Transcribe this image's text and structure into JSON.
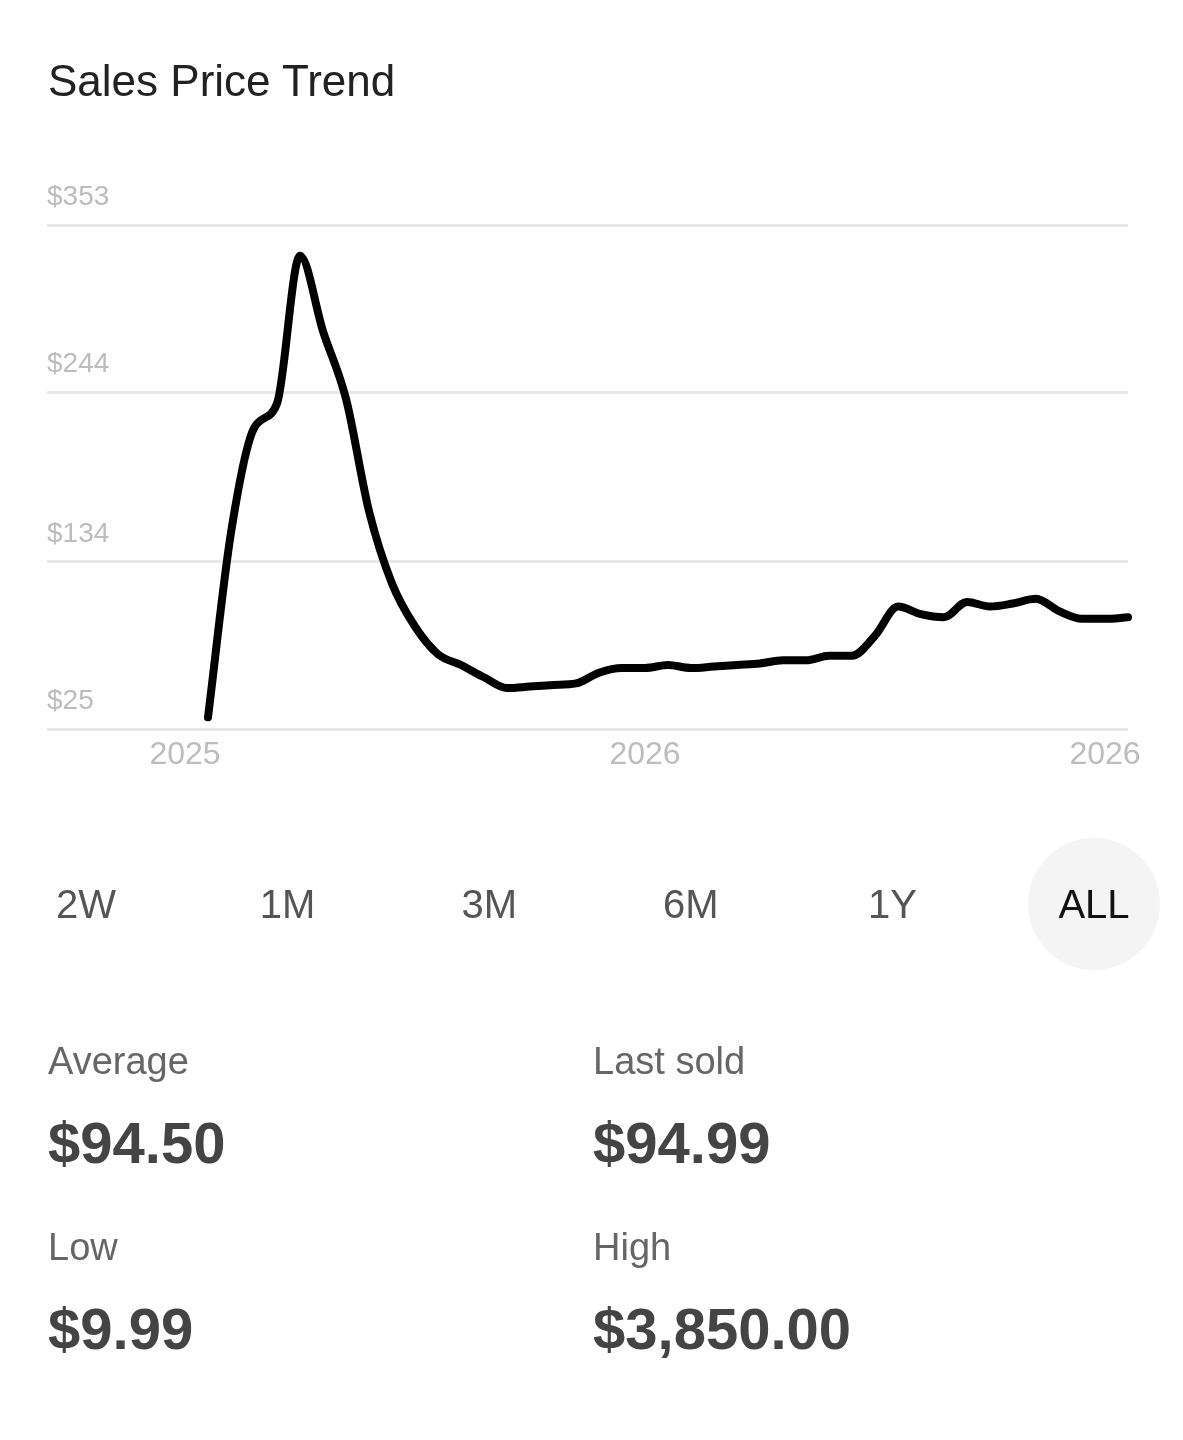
{
  "chart_data": {
    "type": "line",
    "title": "Sales Price Trend",
    "categories": [
      null,
      null,
      null,
      null,
      null,
      null,
      "2025",
      null,
      null,
      null,
      null,
      null,
      null,
      null,
      null,
      null,
      null,
      null,
      null,
      null,
      null,
      null,
      null,
      null,
      null,
      null,
      "2026",
      null,
      null,
      null,
      null,
      null,
      null,
      null,
      null,
      null,
      null,
      null,
      null,
      null,
      null,
      null,
      null,
      null,
      null,
      null,
      "2026",
      null
    ],
    "ylim": [
      25,
      353
    ],
    "yticks": [
      {
        "value": 25,
        "label": "$25"
      },
      {
        "value": 134,
        "label": "$134"
      },
      {
        "value": 244,
        "label": "$244"
      },
      {
        "value": 353,
        "label": "$353"
      }
    ],
    "grid": "y",
    "marker": "none",
    "line_style": "solid",
    "series": [
      {
        "color": "#000000",
        "values": [
          null,
          null,
          null,
          null,
          null,
          null,
          null,
          33,
          153,
          221,
          237,
          333,
          284,
          240,
          167,
          120,
          92,
          74,
          67,
          59,
          52,
          53,
          54,
          55,
          62,
          65,
          65,
          67,
          65,
          66,
          67,
          68,
          70,
          70,
          73,
          73,
          86,
          105,
          100,
          98,
          108,
          105,
          107,
          110,
          102,
          97,
          97,
          98
        ]
      }
    ],
    "annotations": [
      "2W",
      "1M",
      "3M",
      "6M",
      "1Y",
      "ALL",
      "Average",
      "$94.50",
      "Last sold",
      "$94.99",
      "Low",
      "$9.99",
      "High",
      "$3,850.00"
    ]
  }
}
